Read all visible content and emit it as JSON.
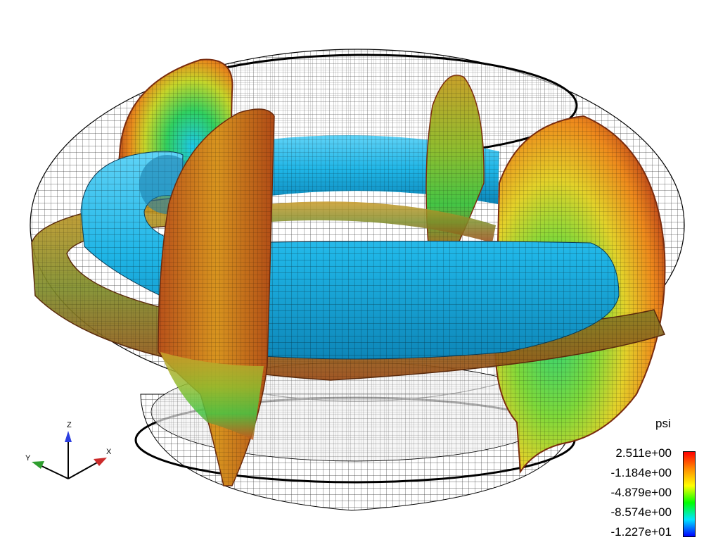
{
  "axes_triad": {
    "x_label": "X",
    "y_label": "Y",
    "z_label": "Z",
    "colors": {
      "x": "#cc2b2b",
      "y": "#2f9e2f",
      "z": "#2c3fe0"
    }
  },
  "legend": {
    "title": "psi",
    "labels": [
      "2.511e+00",
      "-1.184e+00",
      "-4.879e+00",
      "-8.574e+00",
      "-1.227e+01"
    ],
    "colormap": [
      "#ff0000",
      "#ff8c00",
      "#ffff00",
      "#00ff00",
      "#00e5ff",
      "#0000ff"
    ]
  },
  "colors": {
    "mesh": "#000000",
    "tube": "#29b9ea",
    "high": "#d8621a",
    "mid": "#d9c72a",
    "low": "#28c858"
  }
}
